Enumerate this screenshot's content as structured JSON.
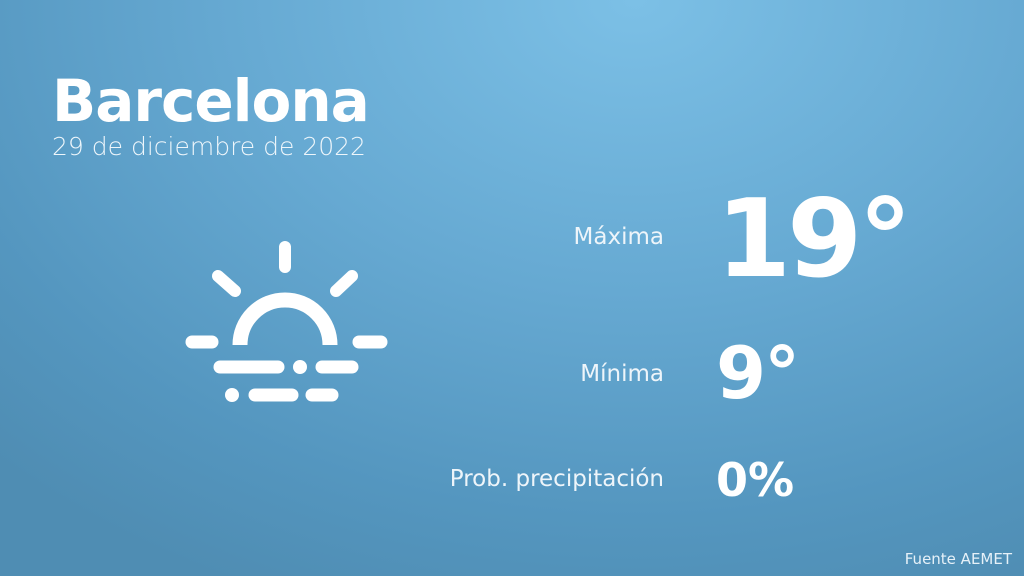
{
  "city": "Barcelona",
  "date": "29 de diciembre de 2022",
  "weather_icon": "sun-rising-fog-icon",
  "max": {
    "label": "Máxima",
    "value": "19°"
  },
  "min": {
    "label": "Mínima",
    "value": "9°"
  },
  "precip": {
    "label": "Prob. precipitación",
    "value": "0%"
  },
  "source": "Fuente AEMET",
  "colors": {
    "background_top": "#7cc0e6",
    "background_bottom": "#4f8db3",
    "text": "#ffffff"
  }
}
